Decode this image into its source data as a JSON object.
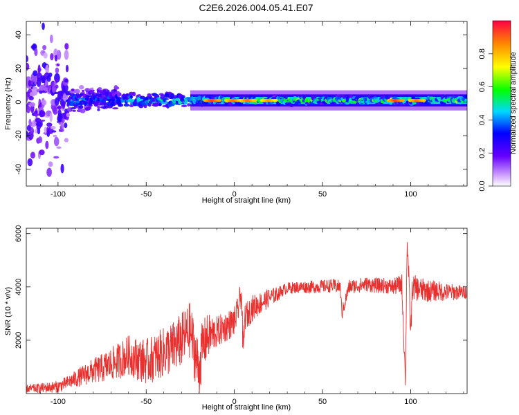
{
  "title": "C2E6.2026.004.05.41.E07",
  "chart_data": [
    {
      "type": "heatmap",
      "xlabel": "Height of straight line (km)",
      "ylabel": "Frequency (Hz)",
      "xlim": [
        -118,
        132
      ],
      "ylim": [
        -50,
        48
      ],
      "xticks": [
        -100,
        -50,
        0,
        50,
        100
      ],
      "yticks": [
        -40,
        -20,
        0,
        20,
        40
      ],
      "colorbar": {
        "label": "Normalized spectral amplitude",
        "range": [
          0,
          1
        ],
        "ticks": [
          "0.0",
          "0.2",
          "0.4",
          "0.6",
          "0.8"
        ]
      },
      "ridge": {
        "frequency_hz": 1,
        "segments": [
          {
            "x_start": -118,
            "x_end": -95,
            "freq_spread_hz": 48,
            "amplitude": 0.15
          },
          {
            "x_start": -95,
            "x_end": -65,
            "freq_spread_hz": 10,
            "amplitude": 0.35
          },
          {
            "x_start": -65,
            "x_end": -25,
            "freq_spread_hz": 6,
            "amplitude": 0.45
          },
          {
            "x_start": -25,
            "x_end": 132,
            "freq_spread_hz": 3,
            "amplitude": 0.6
          }
        ],
        "peaks": [
          {
            "x": -12,
            "amplitude": 0.95
          },
          {
            "x": 0,
            "amplitude": 0.9
          },
          {
            "x": 8,
            "amplitude": 0.9
          },
          {
            "x": 20,
            "amplitude": 0.85
          },
          {
            "x": 92,
            "amplitude": 0.95
          },
          {
            "x": 104,
            "amplitude": 0.9
          }
        ]
      }
    },
    {
      "type": "line",
      "xlabel": "Height of straight line (km)",
      "ylabel": "SNR (10 * v/v)",
      "xlim": [
        -118,
        132
      ],
      "ylim": [
        0,
        6200
      ],
      "xticks": [
        -100,
        -50,
        0,
        50,
        100
      ],
      "yticks": [
        2000,
        4000,
        6000
      ],
      "color": "#e8302e",
      "series": [
        {
          "x": [
            -118,
            -110,
            -100,
            -95,
            -90,
            -85,
            -80,
            -75,
            -70,
            -65,
            -60,
            -55,
            -50,
            -45,
            -40,
            -35,
            -30,
            -25,
            -22,
            -20,
            -18,
            -15,
            -10,
            -5,
            0,
            2,
            4,
            5,
            6,
            8,
            10,
            15,
            20,
            25,
            28,
            30,
            35,
            40,
            45,
            50,
            55,
            60,
            61,
            65,
            70,
            75,
            80,
            85,
            90,
            95,
            97,
            98,
            99,
            100,
            101,
            105,
            110,
            115,
            120,
            125,
            132
          ],
          "y": [
            180,
            200,
            260,
            400,
            550,
            700,
            850,
            950,
            1100,
            1250,
            1450,
            1300,
            1200,
            1350,
            1550,
            1700,
            2000,
            2400,
            1400,
            900,
            1800,
            2150,
            2300,
            2500,
            2700,
            3100,
            3800,
            1500,
            2900,
            3000,
            3200,
            3400,
            3600,
            3750,
            3900,
            3950,
            3980,
            4000,
            4000,
            4020,
            4050,
            4000,
            3000,
            4000,
            4050,
            4100,
            4050,
            4050,
            4000,
            4100,
            500,
            5800,
            4200,
            2200,
            4000,
            3900,
            3850,
            3850,
            3800,
            3800,
            3800
          ]
        }
      ],
      "noise": {
        "band": [
          {
            "x": -118,
            "amp": 150
          },
          {
            "x": -95,
            "amp": 250
          },
          {
            "x": -65,
            "amp": 700
          },
          {
            "x": -35,
            "amp": 1000
          },
          {
            "x": -20,
            "amp": 1100
          },
          {
            "x": -10,
            "amp": 600
          },
          {
            "x": 10,
            "amp": 500
          },
          {
            "x": 28,
            "amp": 220
          },
          {
            "x": 90,
            "amp": 300
          },
          {
            "x": 100,
            "amp": 500
          },
          {
            "x": 132,
            "amp": 250
          }
        ]
      }
    }
  ]
}
